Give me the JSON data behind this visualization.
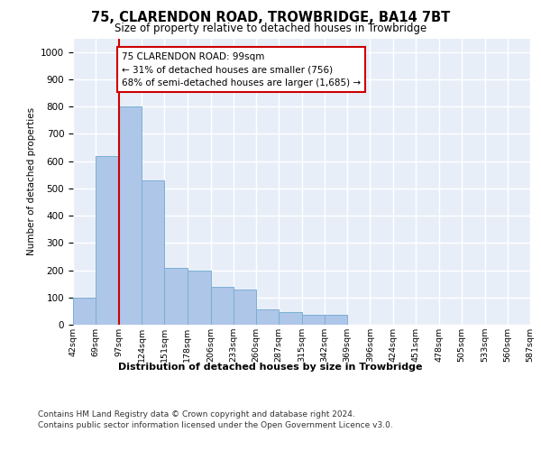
{
  "title": "75, CLARENDON ROAD, TROWBRIDGE, BA14 7BT",
  "subtitle": "Size of property relative to detached houses in Trowbridge",
  "xlabel": "Distribution of detached houses by size in Trowbridge",
  "ylabel": "Number of detached properties",
  "bar_color": "#aec6e8",
  "bar_edge_color": "#7aafd4",
  "background_color": "#e8eef8",
  "grid_color": "#ffffff",
  "annotation_text": "75 CLARENDON ROAD: 99sqm\n← 31% of detached houses are smaller (756)\n68% of semi-detached houses are larger (1,685) →",
  "annotation_box_color": "#ffffff",
  "annotation_box_edge": "#cc0000",
  "vline_x": 97,
  "vline_color": "#cc0000",
  "bin_edges": [
    42,
    69,
    97,
    124,
    151,
    178,
    206,
    233,
    260,
    287,
    315,
    342,
    369,
    396,
    424,
    451,
    478,
    505,
    533,
    560,
    587
  ],
  "bar_heights": [
    100,
    620,
    800,
    530,
    210,
    200,
    140,
    130,
    55,
    45,
    35,
    35,
    0,
    0,
    0,
    0,
    0,
    0,
    0,
    0
  ],
  "ylim": [
    0,
    1050
  ],
  "yticks": [
    0,
    100,
    200,
    300,
    400,
    500,
    600,
    700,
    800,
    900,
    1000
  ],
  "footer_line1": "Contains HM Land Registry data © Crown copyright and database right 2024.",
  "footer_line2": "Contains public sector information licensed under the Open Government Licence v3.0."
}
